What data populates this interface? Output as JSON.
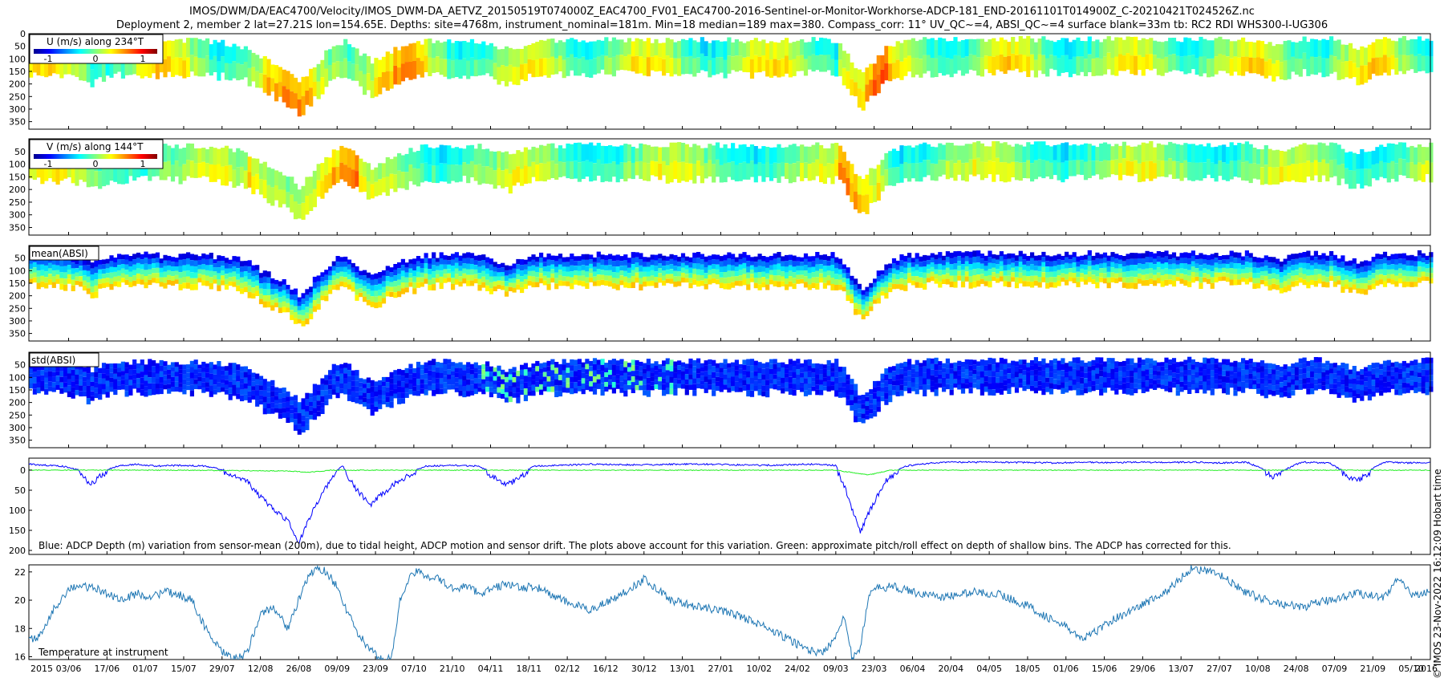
{
  "figure": {
    "title_line1": "IMOS/DWM/DA/EAC4700/Velocity/IMOS_DWM-DA_AETVZ_20150519T074000Z_EAC4700_FV01_EAC4700-2016-Sentinel-or-Monitor-Workhorse-ADCP-181_END-20161101T014900Z_C-20210421T024526Z.nc",
    "title_line2": "Deployment 2, member 2 lat=27.21S lon=154.65E. Depths: site=4768m, instrument_nominal=181m. Min=18 median=189 max=380. Compass_corr: 11° UV_QC~=4, ABSI_QC~=4 surface blank=33m tb: RC2 RDI WHS300-I-UG306",
    "side_text": "© IMOS 23-Nov-2022 16:12:09 Hobart time",
    "year_start": "2015",
    "year_end": "2016"
  },
  "chart_data": [
    {
      "type": "heatmap",
      "legend_label": "U (m/s) along 234°T",
      "colorbar_ticks": [
        "-1",
        "0",
        "1"
      ],
      "colormap": "jet",
      "yticks": [
        "0",
        "50",
        "100",
        "150",
        "200",
        "250",
        "300",
        "350"
      ],
      "ylim": [
        0,
        380
      ]
    },
    {
      "type": "heatmap",
      "legend_label": "V (m/s) along 144°T",
      "colorbar_ticks": [
        "-1",
        "0",
        "1"
      ],
      "colormap": "jet",
      "yticks": [
        "50",
        "100",
        "150",
        "200",
        "250",
        "300",
        "350"
      ],
      "ylim": [
        0,
        380
      ]
    },
    {
      "type": "heatmap",
      "legend_label": "mean(ABSI)",
      "colormap": "jet",
      "yticks": [
        "50",
        "100",
        "150",
        "200",
        "250",
        "300",
        "350"
      ],
      "ylim": [
        0,
        380
      ]
    },
    {
      "type": "heatmap",
      "legend_label": "std(ABSI)",
      "colormap": "jet",
      "yticks": [
        "50",
        "100",
        "150",
        "200",
        "250",
        "300",
        "350"
      ],
      "ylim": [
        0,
        380
      ]
    },
    {
      "type": "line",
      "annotation": "Blue: ADCP Depth (m) variation from sensor-mean (200m), due to tidal height, ADCP motion and sensor drift. The plots above account for this variation. Green: approximate pitch/roll effect on depth of shallow bins. The ADCP has corrected for this.",
      "yticks": [
        "0",
        "50",
        "100",
        "150",
        "200"
      ],
      "ylim": [
        -30,
        210
      ],
      "series": [
        {
          "color": "#0000ff",
          "x": [
            5.5,
            12,
            18,
            24,
            28,
            32,
            38,
            45,
            52,
            60,
            70,
            80,
            85,
            90,
            95,
            100,
            104,
            108,
            112,
            116,
            120,
            125,
            130,
            140,
            150,
            160,
            170,
            180,
            190,
            200,
            210,
            220,
            230,
            240,
            250,
            260,
            270,
            280,
            290,
            295,
            300,
            303,
            306,
            309,
            312,
            318,
            325,
            335,
            345,
            360,
            370,
            380,
            390,
            400,
            410,
            420,
            430,
            440,
            450,
            460,
            470,
            480,
            490,
            500,
            510,
            517
          ],
          "y": [
            -15,
            -12,
            -10,
            0,
            30,
            5,
            -10,
            -15,
            -10,
            -12,
            -10,
            5,
            20,
            60,
            90,
            120,
            175,
            110,
            60,
            10,
            -10,
            40,
            80,
            20,
            -10,
            -12,
            -10,
            30,
            -10,
            -12,
            -15,
            -14,
            -13,
            -15,
            -15,
            -14,
            -12,
            -13,
            -15,
            -14,
            -12,
            30,
            90,
            145,
            100,
            20,
            -10,
            -18,
            -20,
            -20,
            -19,
            -18,
            -20,
            -18,
            -20,
            -19,
            -20,
            -18,
            -20,
            10,
            -20,
            -18,
            20,
            -20,
            -18,
            -20
          ]
        },
        {
          "color": "#22ee22",
          "x": [
            5.5,
            60,
            100,
            108,
            116,
            200,
            300,
            306,
            312,
            320,
            400,
            517
          ],
          "y": [
            0,
            0,
            2,
            5,
            0,
            0,
            0,
            6,
            12,
            0,
            0,
            0
          ]
        }
      ]
    },
    {
      "type": "line",
      "annotation": "Temperature at instrument",
      "yticks": [
        "16",
        "18",
        "20",
        "22"
      ],
      "ylim": [
        15.8,
        22.5
      ],
      "series": [
        {
          "color": "#1f77b4",
          "x": [
            5.5,
            10,
            15,
            20,
            25,
            30,
            35,
            40,
            45,
            50,
            55,
            60,
            65,
            70,
            75,
            80,
            85,
            90,
            95,
            100,
            105,
            108,
            111,
            114,
            118,
            122,
            126,
            130,
            134,
            138,
            141,
            144,
            147,
            150,
            155,
            160,
            165,
            170,
            175,
            180,
            185,
            190,
            200,
            210,
            220,
            230,
            240,
            250,
            260,
            270,
            280,
            290,
            295,
            300,
            303,
            306,
            309,
            312,
            315,
            320,
            330,
            340,
            350,
            360,
            370,
            380,
            385,
            390,
            395,
            400,
            410,
            420,
            430,
            440,
            450,
            460,
            470,
            480,
            490,
            500,
            505,
            510,
            517
          ],
          "y": [
            17.2,
            17.5,
            19.5,
            20.8,
            21.0,
            20.8,
            20.4,
            20.0,
            20.5,
            20.2,
            20.6,
            20.4,
            20.0,
            18.0,
            16.5,
            15.8,
            16.2,
            19.0,
            19.5,
            18.0,
            20.5,
            21.8,
            22.3,
            22.0,
            21.0,
            19.0,
            17.5,
            16.5,
            15.8,
            16.0,
            20.0,
            21.5,
            22.0,
            21.8,
            21.5,
            20.8,
            21.0,
            20.5,
            20.8,
            21.2,
            20.8,
            21.0,
            20.0,
            19.3,
            20.2,
            21.5,
            20.0,
            19.5,
            19.2,
            18.5,
            17.5,
            16.5,
            16.2,
            17.5,
            19.0,
            15.8,
            16.5,
            20.5,
            20.8,
            21.0,
            20.5,
            20.2,
            20.6,
            20.4,
            19.6,
            18.5,
            18.0,
            17.2,
            17.8,
            18.5,
            19.5,
            20.5,
            22.3,
            21.8,
            20.5,
            19.8,
            19.5,
            20.0,
            20.5,
            20.2,
            21.5,
            20.4,
            20.6
          ]
        }
      ]
    }
  ],
  "x_axis": {
    "ticks": [
      "03/06",
      "17/06",
      "01/07",
      "15/07",
      "29/07",
      "12/08",
      "26/08",
      "09/09",
      "23/09",
      "07/10",
      "21/10",
      "04/11",
      "18/11",
      "02/12",
      "16/12",
      "30/12",
      "13/01",
      "27/01",
      "10/02",
      "24/02",
      "09/03",
      "23/03",
      "06/04",
      "20/04",
      "04/05",
      "18/05",
      "01/06",
      "15/06",
      "29/06",
      "13/07",
      "27/07",
      "10/08",
      "24/08",
      "07/09",
      "21/09",
      "05/10"
    ],
    "tick_days": [
      20,
      34,
      48,
      62,
      76,
      90,
      104,
      118,
      132,
      146,
      160,
      174,
      188,
      202,
      216,
      230,
      244,
      258,
      272,
      286,
      300,
      314,
      328,
      342,
      356,
      370,
      384,
      398,
      412,
      426,
      440,
      454,
      468,
      482,
      496,
      510
    ],
    "day0": "2015-05-14",
    "xlim": [
      5.5,
      517
    ]
  }
}
